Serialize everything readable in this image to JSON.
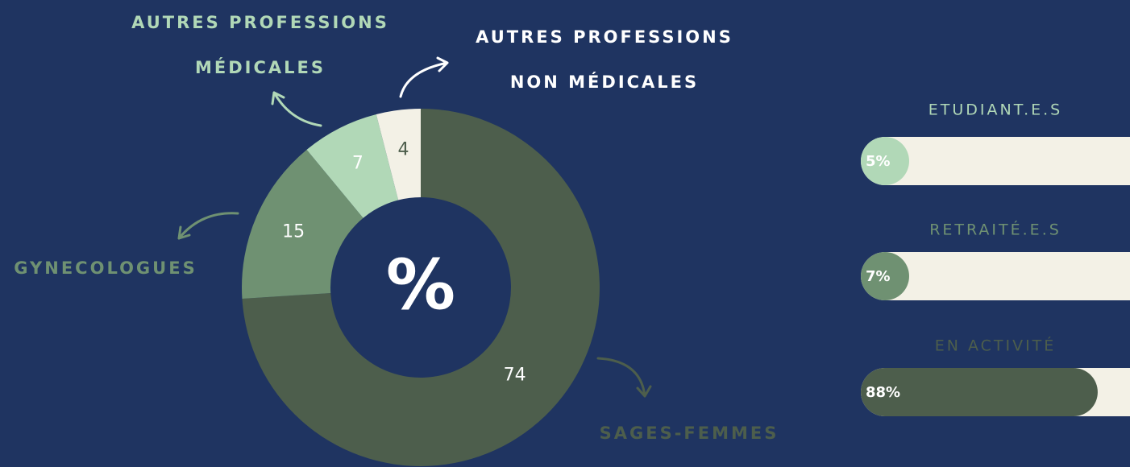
{
  "chart_data": [
    {
      "type": "donut",
      "center_label": "%",
      "categories": [
        "SAGES-FEMMES",
        "GYNECOLOGUES",
        "AUTRES PROFESSIONS MÉDICALES",
        "AUTRES PROFESSIONS NON MÉDICALES"
      ],
      "values": [
        74,
        15,
        7,
        4
      ],
      "colors": [
        "#4d5e4c",
        "#6f9172",
        "#b1d8b7",
        "#f3f1e6"
      ],
      "label_colors": [
        "#ffffff",
        "#ffffff",
        "#ffffff",
        "#4d5e4c"
      ],
      "category_colors": [
        "#4d5e4c",
        "#6f9172",
        "#b1d8b7",
        "#ffffff"
      ]
    },
    {
      "type": "progress",
      "categories": [
        "ETUDIANT.E.S",
        "RETRAITÉ.E.S",
        "EN ACTIVITÉ"
      ],
      "values": [
        5,
        7,
        88
      ],
      "value_labels": [
        "5%",
        "7%",
        "88%"
      ],
      "colors": [
        "#b1d8b7",
        "#6f9172",
        "#4d5e4c"
      ],
      "label_colors": [
        "#b1d8b7",
        "#6f9172",
        "#4d5e4c"
      ],
      "track_color": "#f3f1e6",
      "xlim": [
        0,
        100
      ]
    }
  ]
}
